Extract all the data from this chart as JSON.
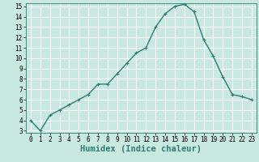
{
  "x": [
    0,
    1,
    2,
    3,
    4,
    5,
    6,
    7,
    8,
    9,
    10,
    11,
    12,
    13,
    14,
    15,
    16,
    17,
    18,
    19,
    20,
    21,
    22,
    23
  ],
  "y": [
    4.0,
    3.0,
    4.5,
    5.0,
    5.5,
    6.0,
    6.5,
    7.5,
    7.5,
    8.5,
    9.5,
    10.5,
    11.0,
    13.0,
    14.3,
    15.0,
    15.2,
    14.5,
    11.8,
    10.2,
    8.2,
    6.5,
    6.3,
    6.0
  ],
  "line_color": "#2e7d6e",
  "marker": "+",
  "bg_color": "#c8e8e0",
  "grid_color": "#ffffff",
  "xlabel": "Humidex (Indice chaleur)",
  "ylim_min": 3,
  "ylim_max": 15,
  "xlim_min": 0,
  "xlim_max": 23,
  "yticks": [
    3,
    4,
    5,
    6,
    7,
    8,
    9,
    10,
    11,
    12,
    13,
    14,
    15
  ],
  "xticks": [
    0,
    1,
    2,
    3,
    4,
    5,
    6,
    7,
    8,
    9,
    10,
    11,
    12,
    13,
    14,
    15,
    16,
    17,
    18,
    19,
    20,
    21,
    22,
    23
  ],
  "tick_label_fontsize": 5.5,
  "xlabel_fontsize": 7.5,
  "linewidth": 1.0,
  "markersize": 3.5,
  "markeredgewidth": 0.8
}
